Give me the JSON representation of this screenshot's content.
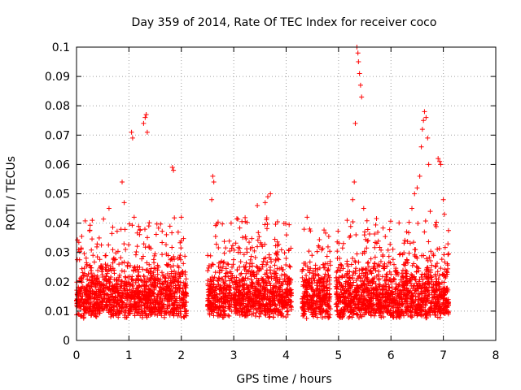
{
  "chart_data": {
    "type": "scatter",
    "title": "Day 359 of 2014, Rate Of TEC Index for receiver coco",
    "xlabel": "GPS time / hours",
    "ylabel": "ROTI / TECUs",
    "xlim": [
      0,
      8
    ],
    "ylim": [
      0,
      0.1
    ],
    "x_ticks": [
      "0",
      "1",
      "2",
      "3",
      "4",
      "5",
      "6",
      "7",
      "8"
    ],
    "y_ticks": [
      "0",
      "0.01",
      "0.02",
      "0.03",
      "0.04",
      "0.05",
      "0.06",
      "0.07",
      "0.08",
      "0.09",
      "0.1"
    ],
    "grid": true,
    "marker": "+",
    "marker_color": "#ff0000",
    "data_segments": [
      {
        "x_start": 0.0,
        "x_end": 2.1,
        "typical_range": [
          0.005,
          0.03
        ]
      },
      {
        "x_start": 2.5,
        "x_end": 4.1,
        "typical_range": [
          0.005,
          0.03
        ]
      },
      {
        "x_start": 4.3,
        "x_end": 4.85,
        "typical_range": [
          0.005,
          0.03
        ]
      },
      {
        "x_start": 4.95,
        "x_end": 7.1,
        "typical_range": [
          0.005,
          0.03
        ]
      }
    ],
    "notable_points": [
      {
        "x": 0.62,
        "y": 0.045
      },
      {
        "x": 0.87,
        "y": 0.054
      },
      {
        "x": 0.91,
        "y": 0.047
      },
      {
        "x": 1.05,
        "y": 0.071
      },
      {
        "x": 1.07,
        "y": 0.069
      },
      {
        "x": 1.1,
        "y": 0.042
      },
      {
        "x": 1.28,
        "y": 0.074
      },
      {
        "x": 1.31,
        "y": 0.076
      },
      {
        "x": 1.33,
        "y": 0.077
      },
      {
        "x": 1.35,
        "y": 0.071
      },
      {
        "x": 1.83,
        "y": 0.059
      },
      {
        "x": 1.85,
        "y": 0.058
      },
      {
        "x": 2.0,
        "y": 0.042
      },
      {
        "x": 2.58,
        "y": 0.048
      },
      {
        "x": 2.6,
        "y": 0.056
      },
      {
        "x": 2.62,
        "y": 0.054
      },
      {
        "x": 2.95,
        "y": 0.04
      },
      {
        "x": 3.45,
        "y": 0.046
      },
      {
        "x": 3.6,
        "y": 0.047
      },
      {
        "x": 3.65,
        "y": 0.049
      },
      {
        "x": 3.7,
        "y": 0.05
      },
      {
        "x": 4.4,
        "y": 0.042
      },
      {
        "x": 4.45,
        "y": 0.038
      },
      {
        "x": 5.27,
        "y": 0.048
      },
      {
        "x": 5.3,
        "y": 0.054
      },
      {
        "x": 5.32,
        "y": 0.074
      },
      {
        "x": 5.35,
        "y": 0.1
      },
      {
        "x": 5.37,
        "y": 0.098
      },
      {
        "x": 5.38,
        "y": 0.095
      },
      {
        "x": 5.4,
        "y": 0.091
      },
      {
        "x": 5.42,
        "y": 0.087
      },
      {
        "x": 5.44,
        "y": 0.083
      },
      {
        "x": 5.48,
        "y": 0.045
      },
      {
        "x": 5.5,
        "y": 0.037
      },
      {
        "x": 6.3,
        "y": 0.037
      },
      {
        "x": 6.4,
        "y": 0.045
      },
      {
        "x": 6.45,
        "y": 0.05
      },
      {
        "x": 6.5,
        "y": 0.052
      },
      {
        "x": 6.55,
        "y": 0.056
      },
      {
        "x": 6.58,
        "y": 0.066
      },
      {
        "x": 6.6,
        "y": 0.072
      },
      {
        "x": 6.62,
        "y": 0.075
      },
      {
        "x": 6.64,
        "y": 0.078
      },
      {
        "x": 6.67,
        "y": 0.076
      },
      {
        "x": 6.7,
        "y": 0.069
      },
      {
        "x": 6.72,
        "y": 0.06
      },
      {
        "x": 6.75,
        "y": 0.044
      },
      {
        "x": 6.9,
        "y": 0.062
      },
      {
        "x": 6.93,
        "y": 0.061
      },
      {
        "x": 6.95,
        "y": 0.06
      },
      {
        "x": 7.0,
        "y": 0.048
      },
      {
        "x": 7.02,
        "y": 0.043
      }
    ]
  }
}
